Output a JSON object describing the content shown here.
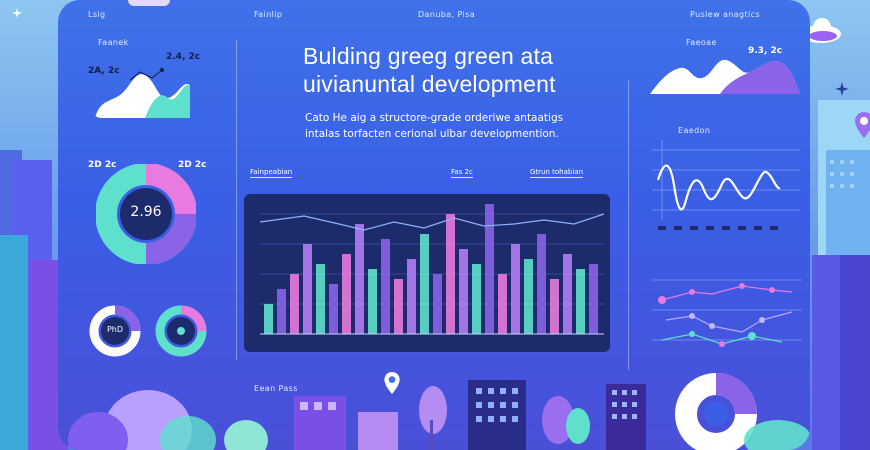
{
  "title": {
    "line1": "Bulding greeg green ata",
    "line2": "uivianuntal development"
  },
  "subtitle": {
    "line1": "Cato He aig a structore-grade orderiwe antaatigs",
    "line2": "intalas torfacten cerional ulbar developmention."
  },
  "top_labels": [
    "Lsig",
    "Fainlip",
    "Danuba, Pisa",
    "Puslew anagtics"
  ],
  "left_panel": {
    "card1": {
      "label": "Faanek",
      "value_a": "2.4, 2c",
      "value_b": "2A, 2c"
    },
    "donut": {
      "value_left": "2D 2c",
      "value_right": "2D 2c",
      "center": "2.96"
    },
    "small_donut_label": "PhD"
  },
  "center_chart": {
    "tabs": [
      "Fainpeabian",
      "Fas 2c",
      "Gtrun tohabian"
    ],
    "footer_label": "Eean Pass"
  },
  "right_panel": {
    "card1": {
      "label": "Faeoae",
      "value": "9.3, 2c"
    },
    "line_chart_label": "Eaedon"
  },
  "colors": {
    "frame": "#3f72ea",
    "accent_pink": "#e97ae0",
    "accent_teal": "#5fe0cd",
    "accent_purple": "#8a63e8",
    "chart_bg": "#1d2a6b"
  },
  "icons": [
    "cloud-icon",
    "sparkle-icon",
    "location-pin-icon"
  ]
}
